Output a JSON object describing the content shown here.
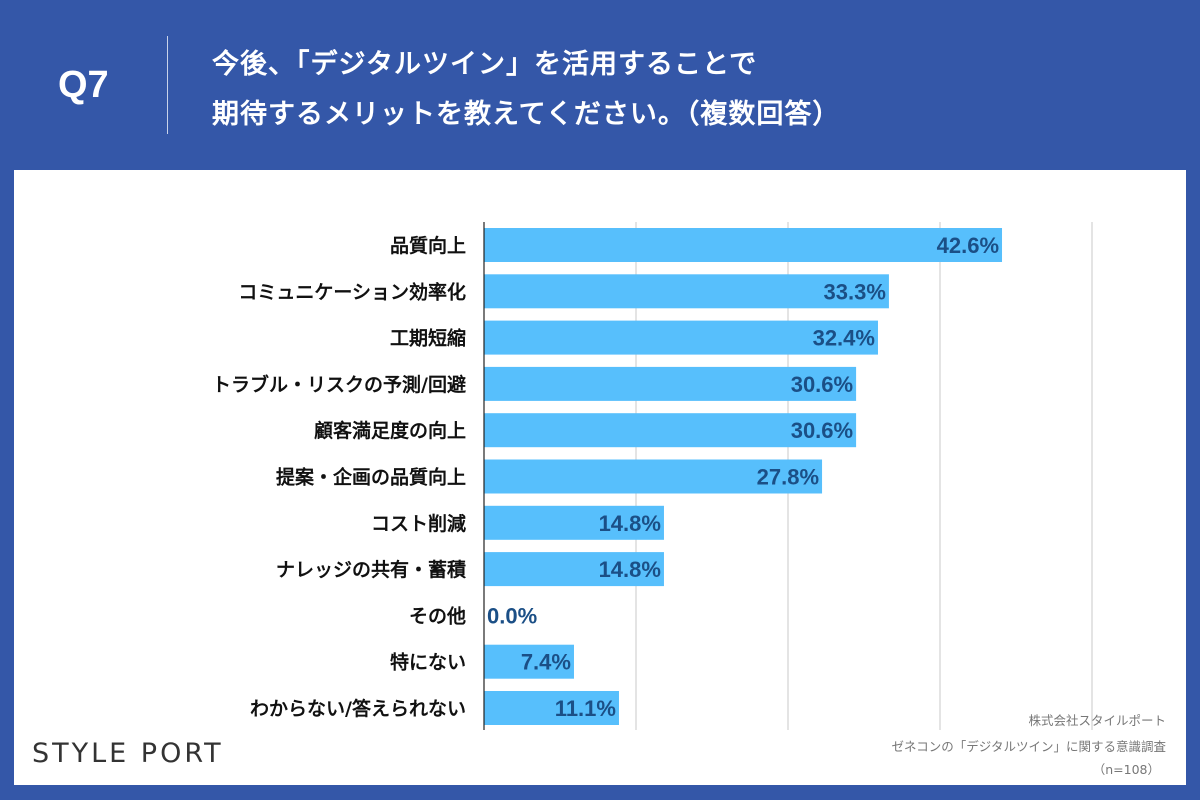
{
  "header": {
    "question": "Q7",
    "title_line1": "今後、「デジタルツイン」を活用することで",
    "title_line2": "期待するメリットを教えてください。（複数回答）"
  },
  "colors": {
    "background": "#3457a8",
    "bar": "#57bffc",
    "value_text": "#1b4f86"
  },
  "chart_data": {
    "type": "bar",
    "orientation": "horizontal",
    "categories": [
      "品質向上",
      "コミュニケーション効率化",
      "工期短縮",
      "トラブル・リスクの予測/回避",
      "顧客満足度の向上",
      "提案・企画の品質向上",
      "コスト削減",
      "ナレッジの共有・蓄積",
      "その他",
      "特にない",
      "わからない/答えられない"
    ],
    "values": [
      42.6,
      33.3,
      32.4,
      30.6,
      30.6,
      27.8,
      14.8,
      14.8,
      0.0,
      7.4,
      11.1
    ],
    "value_labels": [
      "42.6%",
      "33.3%",
      "32.4%",
      "30.6%",
      "30.6%",
      "27.8%",
      "14.8%",
      "14.8%",
      "0.0%",
      "7.4%",
      "11.1%"
    ],
    "xlim": [
      0,
      50
    ],
    "grid_step": 12.5,
    "grid": true
  },
  "source": {
    "company": "株式会社スタイルポート",
    "survey": "ゼネコンの「デジタルツイン」に関する意識調査",
    "n": "（n=108）"
  },
  "logo": "STYLE PORT"
}
